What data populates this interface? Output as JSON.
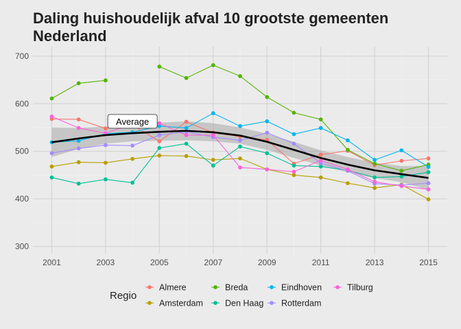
{
  "chart_data": {
    "type": "line",
    "title": "Daling huishoudelijk afval 10 grootste gemeenten Nederland",
    "xlabel": "",
    "ylabel": "",
    "xlim": [
      2000.3,
      2015.7
    ],
    "ylim": [
      285,
      720
    ],
    "xticks": [
      2001,
      2003,
      2005,
      2007,
      2009,
      2011,
      2013,
      2015
    ],
    "yticks": [
      300,
      400,
      500,
      600,
      700
    ],
    "grid": true,
    "legend": {
      "title": "Regio",
      "position": "bottom"
    },
    "annotation": "Average",
    "x": [
      2001,
      2002,
      2003,
      2004,
      2005,
      2006,
      2007,
      2008,
      2009,
      2010,
      2011,
      2012,
      2013,
      2014,
      2015
    ],
    "series": [
      {
        "name": "Almere",
        "color": "#f8766d",
        "values": [
          568,
          567,
          548,
          555,
          521,
          562,
          539,
          531,
          524,
          474,
          493,
          501,
          471,
          480,
          485
        ]
      },
      {
        "name": "Amsterdam",
        "color": "#b79f00",
        "values": [
          468,
          477,
          476,
          484,
          491,
          490,
          482,
          485,
          462,
          450,
          445,
          433,
          423,
          430,
          399
        ]
      },
      {
        "name": "Breda",
        "color": "#53b400",
        "values": [
          611,
          643,
          649,
          null,
          678,
          654,
          681,
          658,
          614,
          581,
          567,
          503,
          474,
          459,
          472
        ]
      },
      {
        "name": "Den Haag",
        "color": "#00c094",
        "values": [
          445,
          432,
          441,
          434,
          507,
          516,
          470,
          510,
          496,
          470,
          468,
          460,
          445,
          447,
          456
        ]
      },
      {
        "name": "Eindhoven",
        "color": "#00b6eb",
        "values": [
          519,
          522,
          537,
          540,
          553,
          549,
          580,
          553,
          563,
          536,
          549,
          523,
          482,
          502,
          467
        ]
      },
      {
        "name": "Rotterdam",
        "color": "#a58aff",
        "values": [
          496,
          506,
          513,
          512,
          534,
          541,
          530,
          523,
          539,
          516,
          475,
          459,
          432,
          429,
          433
        ]
      },
      {
        "name": "Tilburg",
        "color": "#fb61d7",
        "values": [
          573,
          549,
          538,
          557,
          559,
          534,
          534,
          466,
          462,
          457,
          481,
          462,
          436,
          427,
          420
        ]
      }
    ],
    "average": {
      "name": "Average",
      "color": "#000000",
      "values": [
        519,
        527,
        534,
        538,
        541,
        543,
        540,
        533,
        520,
        503,
        486,
        472,
        460,
        452,
        444
      ],
      "ci_halfwidth": [
        31,
        22,
        18,
        17,
        19,
        20,
        19,
        17,
        17,
        17,
        16,
        16,
        16,
        17,
        25
      ]
    }
  }
}
